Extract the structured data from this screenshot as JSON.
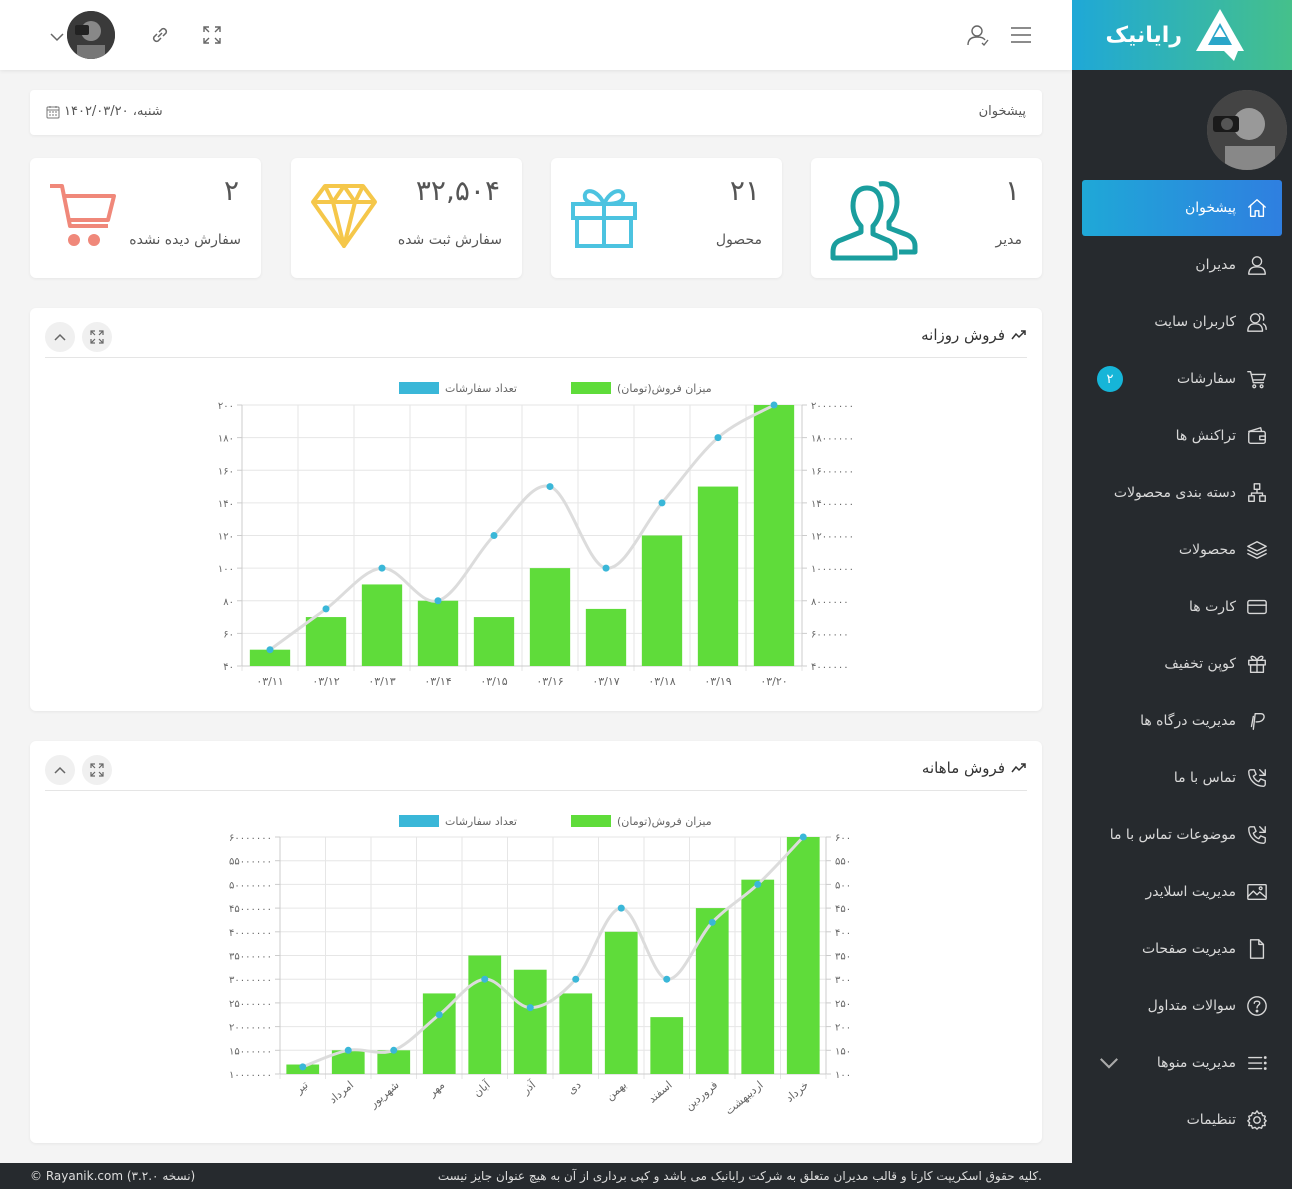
{
  "brand": {
    "name": "رایانیک"
  },
  "sidebar": {
    "items": [
      {
        "label": "پیشخوان",
        "icon": "home-icon",
        "active": true
      },
      {
        "label": "مدیران",
        "icon": "user-icon"
      },
      {
        "label": "کاربران سایت",
        "icon": "users-icon"
      },
      {
        "label": "سفارشات",
        "icon": "cart-icon",
        "badge": "۲"
      },
      {
        "label": "تراکنش ها",
        "icon": "wallet-icon"
      },
      {
        "label": "دسته بندی محصولات",
        "icon": "category-icon"
      },
      {
        "label": "محصولات",
        "icon": "layers-icon"
      },
      {
        "label": "کارت ها",
        "icon": "credit-card-icon"
      },
      {
        "label": "کوپن تخفیف",
        "icon": "gift-icon"
      },
      {
        "label": "مدیریت درگاه ها",
        "icon": "paypal-icon"
      },
      {
        "label": "تماس با ما",
        "icon": "phone-icon"
      },
      {
        "label": "موضوعات تماس با ما",
        "icon": "phone-icon"
      },
      {
        "label": "مدیریت اسلایدر",
        "icon": "image-icon"
      },
      {
        "label": "مدیریت صفحات",
        "icon": "file-icon"
      },
      {
        "label": "سوالات متداول",
        "icon": "question-icon"
      },
      {
        "label": "مدیریت منوها",
        "icon": "menu-list-icon",
        "expandable": true
      },
      {
        "label": "تنظیمات",
        "icon": "gear-icon"
      }
    ]
  },
  "breadcrumb": {
    "title": "پیشخوان",
    "date": "شنبه، ۱۴۰۲/۰۳/۲۰"
  },
  "stats": [
    {
      "value": "۱",
      "caption": "مدیر",
      "icon": "users-icon",
      "color": "#1a9e9e"
    },
    {
      "value": "۲۱",
      "caption": "محصول",
      "icon": "gift-icon",
      "color": "#4cc3e0"
    },
    {
      "value": "۳۲,۵۰۴",
      "caption": "سفارش ثبت شده",
      "icon": "diamond-icon",
      "color": "#f5c74a"
    },
    {
      "value": "۲",
      "caption": "سفارش دیده نشده",
      "icon": "cart-icon",
      "color": "#f0887a"
    }
  ],
  "colors": {
    "bar": "#5fdc3a",
    "line": "#dcdcdc",
    "point": "#3ab7d8"
  },
  "chart_data": [
    {
      "type": "bar",
      "title": "فروش روزانه",
      "legend": [
        "میزان فروش(تومان)",
        "تعداد سفارشات"
      ],
      "categories": [
        "۰۳/۱۱",
        "۰۳/۱۲",
        "۰۳/۱۳",
        "۰۳/۱۴",
        "۰۳/۱۵",
        "۰۳/۱۶",
        "۰۳/۱۷",
        "۰۳/۱۸",
        "۰۳/۱۹",
        "۰۳/۲۰"
      ],
      "series": [
        {
          "name": "میزان فروش(تومان)",
          "type": "bar",
          "axis": "right",
          "values": [
            5000000,
            7000000,
            9000000,
            8000000,
            7000000,
            10000000,
            7500000,
            12000000,
            15000000,
            20000000
          ]
        },
        {
          "name": "تعداد سفارشات",
          "type": "line",
          "axis": "left",
          "values": [
            50,
            75,
            100,
            80,
            120,
            150,
            100,
            140,
            180,
            200
          ]
        }
      ],
      "left_axis": {
        "range": [
          40,
          200
        ],
        "ticks": [
          "۲۰۰",
          "۱۸۰",
          "۱۶۰",
          "۱۴۰",
          "۱۲۰",
          "۱۰۰",
          "۸۰",
          "۶۰",
          "۴۰"
        ]
      },
      "right_axis": {
        "range": [
          4000000,
          20000000
        ],
        "ticks": [
          "۲۰۰۰۰۰۰۰",
          "۱۸۰۰۰۰۰۰",
          "۱۶۰۰۰۰۰۰",
          "۱۴۰۰۰۰۰۰",
          "۱۲۰۰۰۰۰۰",
          "۱۰۰۰۰۰۰۰",
          "۸۰۰۰۰۰۰",
          "۶۰۰۰۰۰۰",
          "۴۰۰۰۰۰۰"
        ]
      }
    },
    {
      "type": "bar",
      "title": "فروش ماهانه",
      "legend": [
        "میزان فروش(تومان)",
        "تعداد سفارشات"
      ],
      "categories": [
        "تیر",
        "امرداد",
        "شهریور",
        "مهر",
        "آبان",
        "آذر",
        "دی",
        "بهمن",
        "اسفند",
        "فروردین",
        "اردیبهشت",
        "خرداد"
      ],
      "series": [
        {
          "name": "میزان فروش(تومان)",
          "type": "bar",
          "axis": "left",
          "values": [
            12000000,
            15000000,
            15000000,
            27000000,
            35000000,
            32000000,
            27000000,
            40000000,
            22000000,
            45000000,
            51000000,
            60000000
          ]
        },
        {
          "name": "تعداد سفارشات",
          "type": "line",
          "axis": "right",
          "values": [
            115,
            150,
            150,
            225,
            300,
            240,
            300,
            450,
            300,
            420,
            500,
            600
          ]
        }
      ],
      "left_axis": {
        "range": [
          10000000,
          60000000
        ],
        "ticks": [
          "۶۰۰۰۰۰۰۰",
          "۵۵۰۰۰۰۰۰",
          "۵۰۰۰۰۰۰۰",
          "۴۵۰۰۰۰۰۰",
          "۴۰۰۰۰۰۰۰",
          "۳۵۰۰۰۰۰۰",
          "۳۰۰۰۰۰۰۰",
          "۲۵۰۰۰۰۰۰",
          "۲۰۰۰۰۰۰۰",
          "۱۵۰۰۰۰۰۰",
          "۱۰۰۰۰۰۰۰"
        ]
      },
      "right_axis": {
        "range": [
          100,
          600
        ],
        "ticks": [
          "۶۰۰",
          "۵۵۰",
          "۵۰۰",
          "۴۵۰",
          "۴۰۰",
          "۳۵۰",
          "۳۰۰",
          "۲۵۰",
          "۲۰۰",
          "۱۵۰",
          "۱۰۰"
        ]
      }
    }
  ],
  "footer": {
    "left": "© Rayanik.com (نسخه ۳.۲.۰)",
    "right": "کلیه حقوق اسکریپت کارتا و قالب مدیران متعلق به شرکت رایانیک می باشد و کپی برداری از آن به هیچ عنوان جایز نیست."
  }
}
